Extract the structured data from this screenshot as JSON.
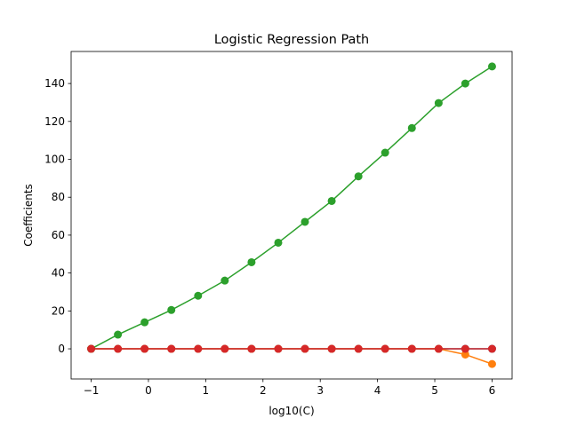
{
  "chart_data": {
    "type": "line",
    "title": "Logistic Regression Path",
    "xlabel": "log10(C)",
    "ylabel": "Coefficients",
    "x": [
      -1,
      -0.533,
      -0.067,
      0.4,
      0.867,
      1.333,
      1.8,
      2.267,
      2.733,
      3.2,
      3.667,
      4.133,
      4.6,
      5.067,
      5.533,
      6
    ],
    "series": [
      {
        "color": "#1f77b4",
        "values": [
          0,
          0,
          0,
          0,
          0,
          0,
          0,
          0,
          0,
          0,
          0,
          0,
          0,
          0,
          0,
          0
        ]
      },
      {
        "color": "#ff7f0e",
        "values": [
          0,
          0,
          0,
          0,
          0,
          0,
          0,
          0,
          0,
          0,
          0,
          0,
          0,
          0,
          -3,
          -8
        ]
      },
      {
        "color": "#2ca02c",
        "values": [
          0,
          7.5,
          14,
          20.5,
          28,
          36,
          45.7,
          56,
          67,
          78,
          91,
          103.5,
          116.5,
          129.7,
          140,
          149
        ]
      },
      {
        "color": "#d62728",
        "values": [
          0,
          0,
          0,
          0,
          0,
          0,
          0,
          0,
          0,
          0,
          0,
          0,
          0,
          0,
          0,
          0
        ]
      }
    ],
    "xlim": [
      -1.35,
      6.35
    ],
    "xticks": [
      {
        "value": -1,
        "label": "−1"
      },
      0,
      1,
      2,
      3,
      4,
      5,
      6
    ],
    "ylim": [
      -15.9,
      156.9
    ],
    "yticks": [
      0,
      20,
      40,
      60,
      80,
      100,
      120,
      140
    ]
  }
}
